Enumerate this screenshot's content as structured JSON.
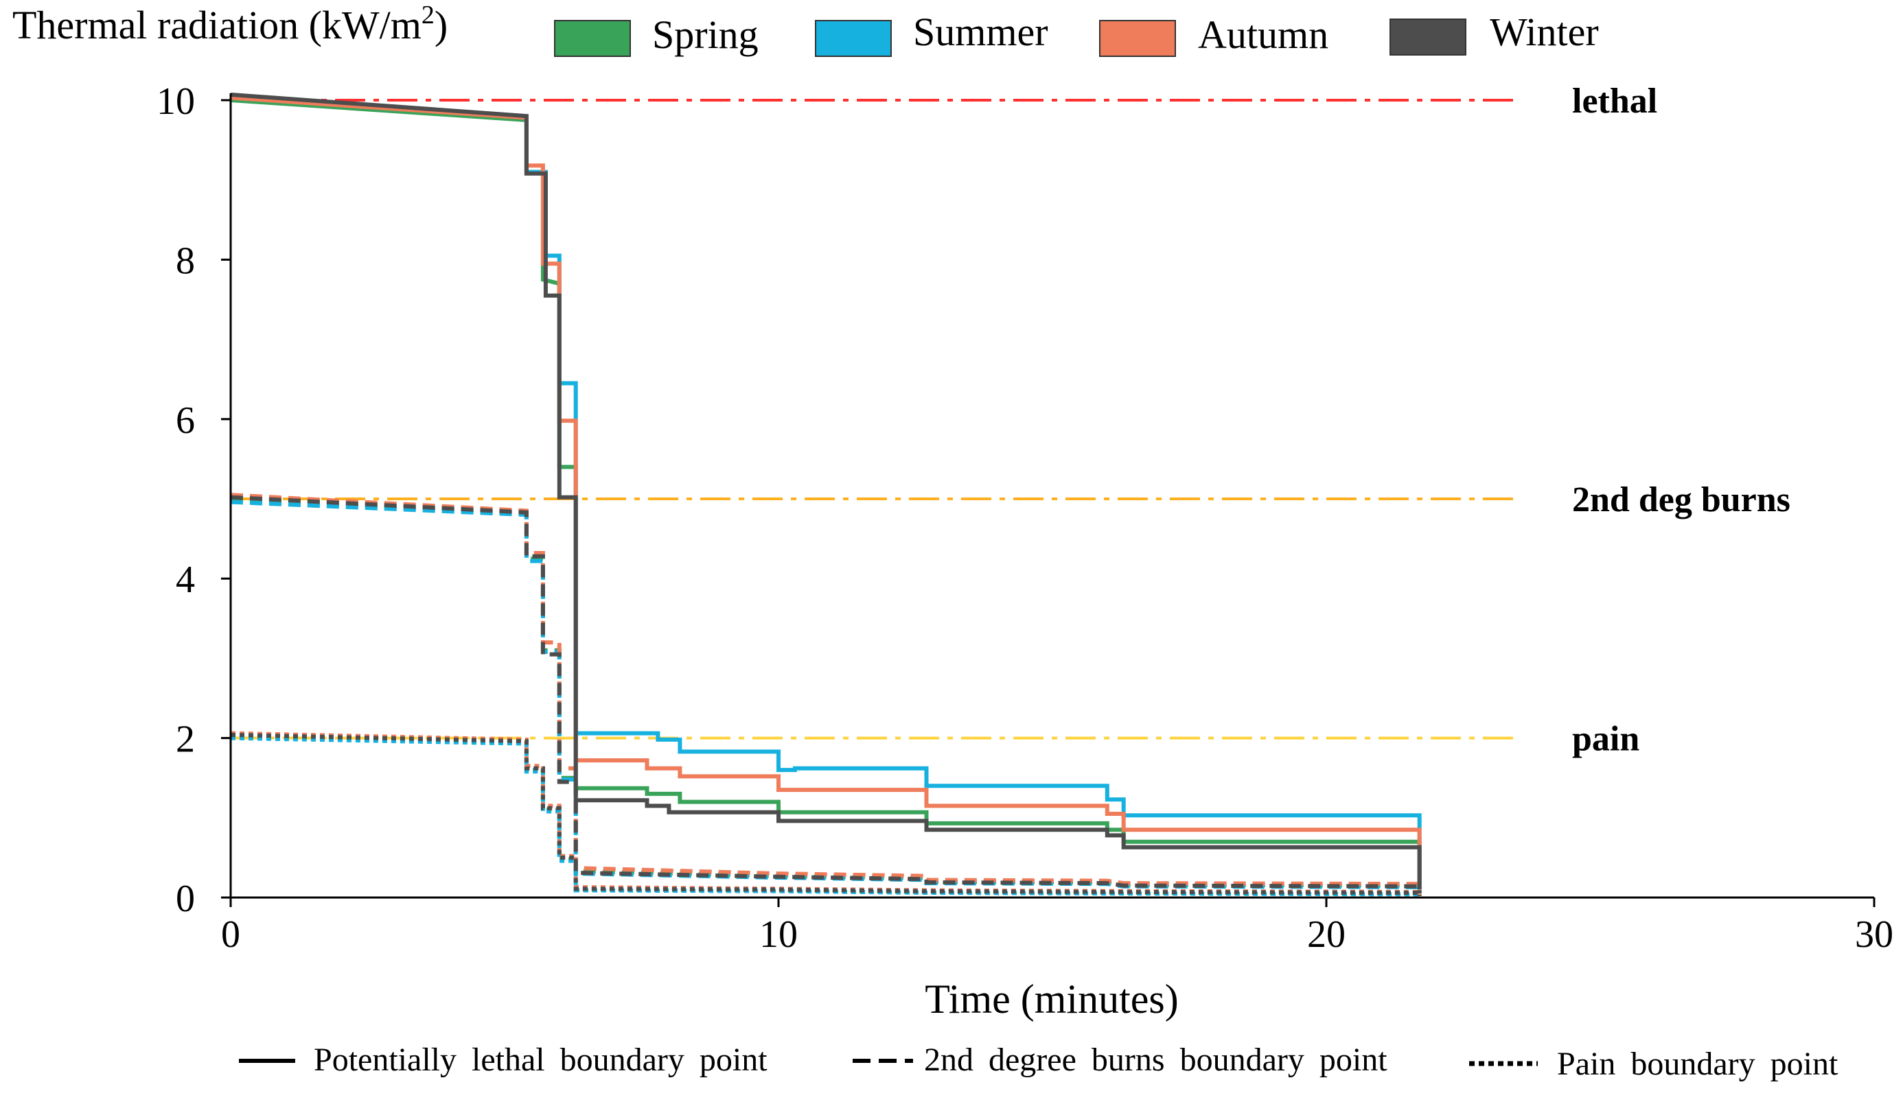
{
  "chart_data": {
    "type": "line",
    "ylabel": "Thermal radiation (kW/m",
    "ylabel_sup": "2",
    "ylabel_end": ")",
    "xlabel": "Time (minutes)",
    "xlim": [
      0,
      30
    ],
    "ylim": [
      0,
      10
    ],
    "x_ticks": [
      0,
      10,
      20,
      30
    ],
    "y_ticks": [
      0,
      2,
      4,
      6,
      8,
      10
    ],
    "grid": false,
    "legend_position": "top",
    "seasons": [
      {
        "name": "Spring",
        "color": "#3aa35a"
      },
      {
        "name": "Summer",
        "color": "#17b1e0"
      },
      {
        "name": "Autumn",
        "color": "#ef7c5a"
      },
      {
        "name": "Winter",
        "color": "#4d4d4d"
      }
    ],
    "line_style_legend": [
      {
        "label": "Potentially lethal boundary point",
        "dash": "solid"
      },
      {
        "label": "2nd degree burns boundary point",
        "dash": "dashed"
      },
      {
        "label": "Pain boundary point",
        "dash": "dotted"
      }
    ],
    "thresholds": [
      {
        "label": "lethal",
        "value": 10,
        "color": "#ff3030"
      },
      {
        "label": "2nd deg burns",
        "value": 5,
        "color": "#ffb020"
      },
      {
        "label": "pain",
        "value": 2,
        "color": "#ffd23c"
      }
    ],
    "threshold_line_end_x": 23.5,
    "series": [
      {
        "name": "Spring",
        "boundary": "lethal",
        "points": [
          [
            0,
            10.0
          ],
          [
            5.4,
            9.75
          ],
          [
            5.4,
            9.1
          ],
          [
            5.7,
            9.1
          ],
          [
            5.7,
            7.75
          ],
          [
            6.0,
            7.7
          ],
          [
            6.0,
            5.4
          ],
          [
            6.3,
            5.4
          ],
          [
            6.3,
            1.37
          ],
          [
            7.6,
            1.37
          ],
          [
            7.6,
            1.3
          ],
          [
            8.2,
            1.3
          ],
          [
            8.2,
            1.2
          ],
          [
            10.0,
            1.2
          ],
          [
            10.0,
            1.07
          ],
          [
            12.7,
            1.07
          ],
          [
            12.7,
            0.93
          ],
          [
            16.0,
            0.93
          ],
          [
            16.0,
            0.85
          ],
          [
            16.3,
            0.85
          ],
          [
            16.3,
            0.7
          ],
          [
            21.7,
            0.7
          ],
          [
            21.7,
            0.1
          ]
        ]
      },
      {
        "name": "Summer",
        "boundary": "lethal",
        "points": [
          [
            0,
            10.05
          ],
          [
            5.4,
            9.8
          ],
          [
            5.4,
            9.1
          ],
          [
            5.75,
            9.1
          ],
          [
            5.75,
            8.05
          ],
          [
            6.0,
            8.05
          ],
          [
            6.0,
            6.45
          ],
          [
            6.3,
            6.45
          ],
          [
            6.3,
            2.06
          ],
          [
            7.8,
            2.06
          ],
          [
            7.8,
            1.98
          ],
          [
            8.2,
            1.98
          ],
          [
            8.2,
            1.83
          ],
          [
            10.0,
            1.83
          ],
          [
            10.0,
            1.6
          ],
          [
            10.3,
            1.6
          ],
          [
            10.3,
            1.62
          ],
          [
            12.7,
            1.62
          ],
          [
            12.7,
            1.4
          ],
          [
            16.0,
            1.4
          ],
          [
            16.0,
            1.23
          ],
          [
            16.3,
            1.23
          ],
          [
            16.3,
            1.03
          ],
          [
            21.7,
            1.03
          ],
          [
            21.7,
            0.1
          ]
        ]
      },
      {
        "name": "Autumn",
        "boundary": "lethal",
        "points": [
          [
            0,
            10.03
          ],
          [
            5.4,
            9.78
          ],
          [
            5.4,
            9.18
          ],
          [
            5.7,
            9.18
          ],
          [
            5.7,
            7.95
          ],
          [
            6.0,
            7.95
          ],
          [
            6.0,
            5.98
          ],
          [
            6.3,
            5.98
          ],
          [
            6.3,
            1.72
          ],
          [
            7.6,
            1.72
          ],
          [
            7.6,
            1.62
          ],
          [
            8.2,
            1.62
          ],
          [
            8.2,
            1.52
          ],
          [
            10.0,
            1.52
          ],
          [
            10.0,
            1.35
          ],
          [
            12.7,
            1.35
          ],
          [
            12.7,
            1.15
          ],
          [
            16.0,
            1.15
          ],
          [
            16.0,
            1.05
          ],
          [
            16.3,
            1.05
          ],
          [
            16.3,
            0.85
          ],
          [
            21.7,
            0.85
          ],
          [
            21.7,
            0.1
          ]
        ]
      },
      {
        "name": "Winter",
        "boundary": "lethal",
        "points": [
          [
            0,
            10.07
          ],
          [
            5.4,
            9.8
          ],
          [
            5.4,
            9.08
          ],
          [
            5.75,
            9.08
          ],
          [
            5.75,
            7.55
          ],
          [
            6.0,
            7.55
          ],
          [
            6.0,
            5.02
          ],
          [
            6.3,
            5.02
          ],
          [
            6.3,
            1.22
          ],
          [
            7.6,
            1.22
          ],
          [
            7.6,
            1.15
          ],
          [
            8.0,
            1.15
          ],
          [
            8.0,
            1.07
          ],
          [
            10.0,
            1.07
          ],
          [
            10.0,
            0.96
          ],
          [
            12.7,
            0.96
          ],
          [
            12.7,
            0.85
          ],
          [
            16.0,
            0.85
          ],
          [
            16.0,
            0.78
          ],
          [
            16.3,
            0.78
          ],
          [
            16.3,
            0.63
          ],
          [
            21.7,
            0.63
          ],
          [
            21.7,
            0.1
          ]
        ]
      },
      {
        "name": "Spring",
        "boundary": "2nd degree burns",
        "points": [
          [
            0,
            4.98
          ],
          [
            5.4,
            4.82
          ],
          [
            5.4,
            4.25
          ],
          [
            5.7,
            4.25
          ],
          [
            5.7,
            3.1
          ],
          [
            6.0,
            3.1
          ],
          [
            6.0,
            1.5
          ],
          [
            6.3,
            1.5
          ],
          [
            6.3,
            0.33
          ],
          [
            10.0,
            0.27
          ],
          [
            12.7,
            0.24
          ],
          [
            12.7,
            0.2
          ],
          [
            16.0,
            0.19
          ],
          [
            16.3,
            0.16
          ],
          [
            21.7,
            0.15
          ],
          [
            21.7,
            0.05
          ]
        ]
      },
      {
        "name": "Summer",
        "boundary": "2nd degree burns",
        "points": [
          [
            0,
            4.96
          ],
          [
            5.4,
            4.8
          ],
          [
            5.4,
            4.22
          ],
          [
            5.7,
            4.22
          ],
          [
            5.7,
            3.08
          ],
          [
            6.0,
            3.08
          ],
          [
            6.0,
            1.48
          ],
          [
            6.3,
            1.48
          ],
          [
            6.3,
            0.3
          ],
          [
            10.0,
            0.25
          ],
          [
            12.7,
            0.22
          ],
          [
            12.7,
            0.18
          ],
          [
            16.0,
            0.17
          ],
          [
            16.3,
            0.14
          ],
          [
            21.7,
            0.13
          ],
          [
            21.7,
            0.05
          ]
        ]
      },
      {
        "name": "Autumn",
        "boundary": "2nd degree burns",
        "points": [
          [
            0,
            5.05
          ],
          [
            5.4,
            4.85
          ],
          [
            5.4,
            4.32
          ],
          [
            5.7,
            4.32
          ],
          [
            5.7,
            3.2
          ],
          [
            6.0,
            3.2
          ],
          [
            6.0,
            1.62
          ],
          [
            6.3,
            1.62
          ],
          [
            6.3,
            0.37
          ],
          [
            10.0,
            0.3
          ],
          [
            12.7,
            0.27
          ],
          [
            12.7,
            0.22
          ],
          [
            16.0,
            0.21
          ],
          [
            16.3,
            0.18
          ],
          [
            21.7,
            0.17
          ],
          [
            21.7,
            0.05
          ]
        ]
      },
      {
        "name": "Winter",
        "boundary": "2nd degree burns",
        "points": [
          [
            0,
            5.02
          ],
          [
            5.4,
            4.83
          ],
          [
            5.4,
            4.28
          ],
          [
            5.7,
            4.28
          ],
          [
            5.7,
            3.05
          ],
          [
            6.0,
            3.05
          ],
          [
            6.0,
            1.45
          ],
          [
            6.3,
            1.45
          ],
          [
            6.3,
            0.31
          ],
          [
            10.0,
            0.26
          ],
          [
            12.7,
            0.23
          ],
          [
            12.7,
            0.19
          ],
          [
            16.0,
            0.18
          ],
          [
            16.3,
            0.15
          ],
          [
            21.7,
            0.14
          ],
          [
            21.7,
            0.05
          ]
        ]
      },
      {
        "name": "Spring",
        "boundary": "pain",
        "points": [
          [
            0,
            2.02
          ],
          [
            5.4,
            1.95
          ],
          [
            5.4,
            1.6
          ],
          [
            5.7,
            1.6
          ],
          [
            5.7,
            1.1
          ],
          [
            6.0,
            1.1
          ],
          [
            6.0,
            0.48
          ],
          [
            6.3,
            0.48
          ],
          [
            6.3,
            0.1
          ],
          [
            10.0,
            0.09
          ],
          [
            12.7,
            0.07
          ],
          [
            16.3,
            0.06
          ],
          [
            21.7,
            0.05
          ],
          [
            21.7,
            0.02
          ]
        ]
      },
      {
        "name": "Summer",
        "boundary": "pain",
        "points": [
          [
            0,
            2.0
          ],
          [
            5.4,
            1.93
          ],
          [
            5.4,
            1.58
          ],
          [
            5.7,
            1.58
          ],
          [
            5.7,
            1.08
          ],
          [
            6.0,
            1.08
          ],
          [
            6.0,
            0.46
          ],
          [
            6.3,
            0.46
          ],
          [
            6.3,
            0.09
          ],
          [
            10.0,
            0.08
          ],
          [
            12.7,
            0.06
          ],
          [
            16.3,
            0.05
          ],
          [
            21.7,
            0.04
          ],
          [
            21.7,
            0.02
          ]
        ]
      },
      {
        "name": "Autumn",
        "boundary": "pain",
        "points": [
          [
            0,
            2.06
          ],
          [
            5.4,
            1.98
          ],
          [
            5.4,
            1.65
          ],
          [
            5.7,
            1.65
          ],
          [
            5.7,
            1.15
          ],
          [
            6.0,
            1.15
          ],
          [
            6.0,
            0.52
          ],
          [
            6.3,
            0.52
          ],
          [
            6.3,
            0.13
          ],
          [
            10.0,
            0.11
          ],
          [
            12.7,
            0.09
          ],
          [
            16.3,
            0.08
          ],
          [
            21.7,
            0.07
          ],
          [
            21.7,
            0.02
          ]
        ]
      },
      {
        "name": "Winter",
        "boundary": "pain",
        "points": [
          [
            0,
            2.04
          ],
          [
            5.4,
            1.96
          ],
          [
            5.4,
            1.62
          ],
          [
            5.7,
            1.62
          ],
          [
            5.7,
            1.12
          ],
          [
            6.0,
            1.12
          ],
          [
            6.0,
            0.5
          ],
          [
            6.3,
            0.5
          ],
          [
            6.3,
            0.11
          ],
          [
            10.0,
            0.1
          ],
          [
            12.7,
            0.08
          ],
          [
            16.3,
            0.07
          ],
          [
            21.7,
            0.06
          ],
          [
            21.7,
            0.02
          ]
        ]
      }
    ]
  }
}
